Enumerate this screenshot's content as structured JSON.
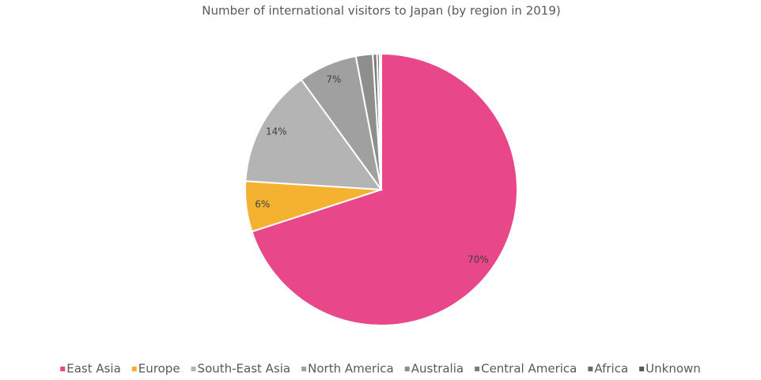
{
  "chart_data": {
    "type": "pie",
    "title": "Number of international visitors to Japan (by region in 2019)",
    "categories": [
      "East Asia",
      "Europe",
      "South-East Asia",
      "North America",
      "Australia",
      "Central America",
      "Africa",
      "Unknown"
    ],
    "values": [
      70,
      6,
      14,
      7,
      2,
      0.5,
      0.3,
      0.2
    ],
    "value_labels": [
      "70%",
      "6%",
      "14%",
      "7%",
      null,
      null,
      null,
      null
    ],
    "colors": [
      "#e8488a",
      "#f5b130",
      "#b4b4b4",
      "#a0a0a0",
      "#8e8e8e",
      "#7c7c7c",
      "#6a6a6a",
      "#585858"
    ],
    "legend": "bottom"
  }
}
